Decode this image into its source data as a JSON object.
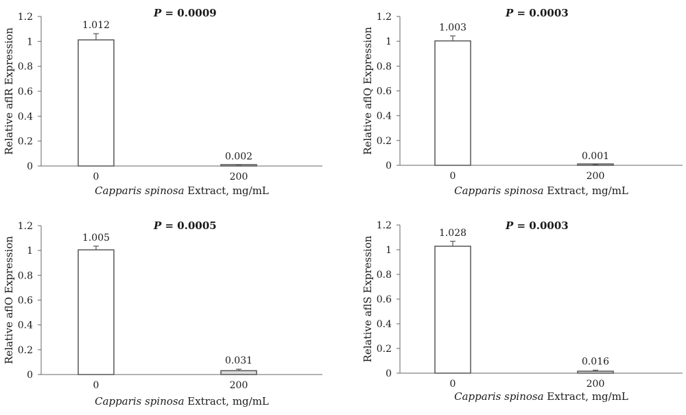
{
  "chart_data": [
    {
      "type": "bar",
      "categories": [
        "0",
        "200"
      ],
      "values": [
        1.012,
        0.002
      ],
      "error": [
        0.05,
        0.006
      ],
      "data_labels": [
        "1.012",
        "0.002"
      ],
      "annotation": {
        "prefix": "P",
        "text": " = 0.0009"
      },
      "xlabel": {
        "italic": "Capparis spinosa",
        "rest": " Extract, mg/mL"
      },
      "ylabel": "Relative aflR Expression",
      "ylim": [
        0,
        1.2
      ],
      "yticks": [
        "0",
        "0.2",
        "0.4",
        "0.6",
        "0.8",
        "1",
        "1.2"
      ],
      "grid": false
    },
    {
      "type": "bar",
      "categories": [
        "0",
        "200"
      ],
      "values": [
        1.003,
        0.001
      ],
      "error": [
        0.04,
        0.004
      ],
      "data_labels": [
        "1.003",
        "0.001"
      ],
      "annotation": {
        "prefix": "P",
        "text": " = 0.0003"
      },
      "xlabel": {
        "italic": "Capparis spinosa",
        "rest": " Extract, mg/mL"
      },
      "ylabel": "Relative aflQ Expression",
      "ylim": [
        0,
        1.2
      ],
      "yticks": [
        "0",
        "0.2",
        "0.4",
        "0.6",
        "0.8",
        "1",
        "1.2"
      ],
      "grid": false
    },
    {
      "type": "bar",
      "categories": [
        "0",
        "200"
      ],
      "values": [
        1.005,
        0.031
      ],
      "error": [
        0.03,
        0.012
      ],
      "data_labels": [
        "1.005",
        "0.031"
      ],
      "annotation": {
        "prefix": "P",
        "text": " = 0.0005"
      },
      "xlabel": {
        "italic": "Capparis spinosa",
        "rest": " Extract, mg/mL"
      },
      "ylabel": "Relative aflO Expression",
      "ylim": [
        0,
        1.2
      ],
      "yticks": [
        "0",
        "0.2",
        "0.4",
        "0.6",
        "0.8",
        "1",
        "1.2"
      ],
      "grid": false
    },
    {
      "type": "bar",
      "categories": [
        "0",
        "200"
      ],
      "values": [
        1.028,
        0.016
      ],
      "error": [
        0.04,
        0.008
      ],
      "data_labels": [
        "1.028",
        "0.016"
      ],
      "annotation": {
        "prefix": "P",
        "text": " = 0.0003"
      },
      "xlabel": {
        "italic": "Capparis spinosa",
        "rest": " Extract, mg/mL"
      },
      "ylabel": "Relative aflS Expression",
      "ylim": [
        0,
        1.2
      ],
      "yticks": [
        "0",
        "0.2",
        "0.4",
        "0.6",
        "0.8",
        "1",
        "1.2"
      ],
      "grid": false
    }
  ],
  "colors": {
    "bar_fill": "#ffffff",
    "bar_stroke": "#555555",
    "axis": "#666666",
    "text": "#1a1a1a",
    "small_bar_fill": "#dddddd"
  }
}
